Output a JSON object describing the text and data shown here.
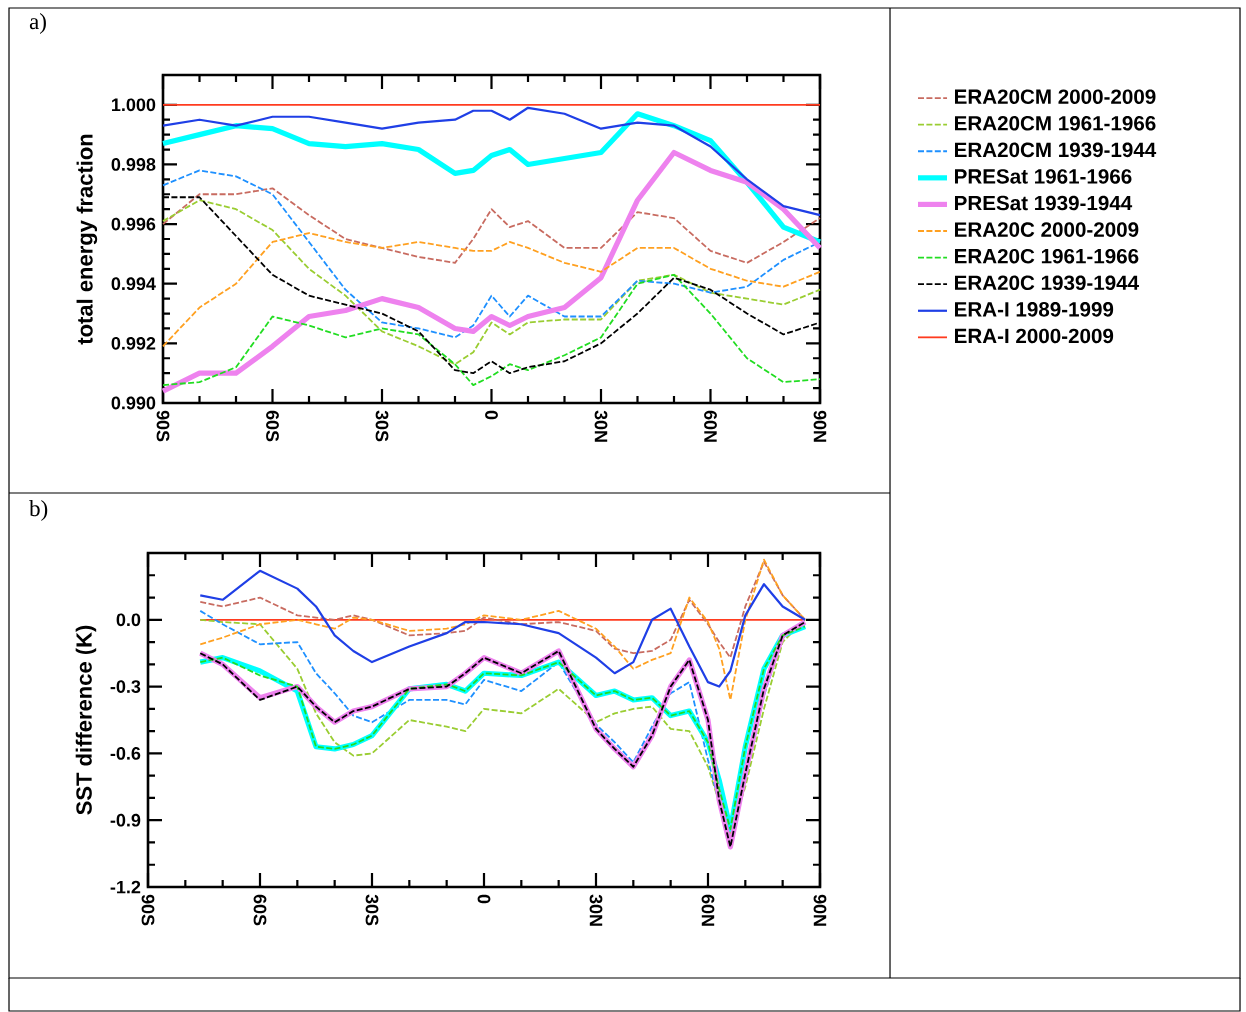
{
  "chart_data": [
    {
      "type": "line",
      "title": "a)",
      "ylabel": "total energy fraction",
      "x": [
        -90,
        -80,
        -70,
        -60,
        -50,
        -40,
        -30,
        -20,
        -10,
        -5,
        0,
        5,
        10,
        20,
        30,
        40,
        50,
        60,
        70,
        80,
        90
      ],
      "xlim": [
        -90,
        90
      ],
      "xticks": [
        {
          "value": -90,
          "label": "90S"
        },
        {
          "value": -60,
          "label": "60S"
        },
        {
          "value": -30,
          "label": "30S"
        },
        {
          "value": 0,
          "label": "0"
        },
        {
          "value": 30,
          "label": "30N"
        },
        {
          "value": 60,
          "label": "60N"
        },
        {
          "value": 90,
          "label": "90N"
        }
      ],
      "ylim": [
        0.99,
        1.001
      ],
      "yticks": [
        {
          "value": 0.99,
          "label": "0.990"
        },
        {
          "value": 0.992,
          "label": "0.992"
        },
        {
          "value": 0.994,
          "label": "0.994"
        },
        {
          "value": 0.996,
          "label": "0.996"
        },
        {
          "value": 0.998,
          "label": "0.998"
        },
        {
          "value": 1.0,
          "label": "1.000"
        }
      ],
      "legend": "right",
      "series": [
        {
          "name": "ERA20CM 2000-2009",
          "color": "#c86b60",
          "line_style": "dashed",
          "values": [
            0.996,
            0.997,
            0.997,
            0.9972,
            0.9963,
            0.9955,
            0.9952,
            0.9949,
            0.9947,
            0.9955,
            0.9965,
            0.9959,
            0.9961,
            0.9952,
            0.9952,
            0.9964,
            0.9962,
            0.9951,
            0.9947,
            0.9954,
            0.9962
          ]
        },
        {
          "name": "ERA20CM 1961-1966",
          "color": "#9acd32",
          "line_style": "dashed",
          "values": [
            0.9961,
            0.9968,
            0.9965,
            0.9958,
            0.9945,
            0.9936,
            0.9924,
            0.9919,
            0.9913,
            0.9917,
            0.9927,
            0.9923,
            0.9927,
            0.9928,
            0.9928,
            0.9941,
            0.9943,
            0.9937,
            0.9935,
            0.9933,
            0.9938
          ]
        },
        {
          "name": "ERA20CM 1939-1944",
          "color": "#1e90ff",
          "line_style": "dashed",
          "values": [
            0.9973,
            0.9978,
            0.9976,
            0.997,
            0.9954,
            0.9938,
            0.9927,
            0.9925,
            0.9922,
            0.9926,
            0.9936,
            0.9929,
            0.9936,
            0.9929,
            0.9929,
            0.9941,
            0.994,
            0.9937,
            0.9939,
            0.9948,
            0.9954
          ]
        },
        {
          "name": "PRESat 1961-1966",
          "color": "#00ffff",
          "line_style": "solid",
          "values": [
            0.9987,
            0.999,
            0.9993,
            0.9992,
            0.9987,
            0.9986,
            0.9987,
            0.9985,
            0.9977,
            0.9978,
            0.9983,
            0.9985,
            0.998,
            0.9982,
            0.9984,
            0.9997,
            0.9993,
            0.9988,
            0.9974,
            0.9959,
            0.9954
          ]
        },
        {
          "name": "PRESat 1939-1944",
          "color": "#ee82ee",
          "line_style": "solid",
          "values": [
            0.9904,
            0.991,
            0.991,
            0.9919,
            0.9929,
            0.9931,
            0.9935,
            0.9932,
            0.9925,
            0.9924,
            0.9929,
            0.9926,
            0.9929,
            0.9932,
            0.9942,
            0.9968,
            0.9984,
            0.9978,
            0.9974,
            0.9965,
            0.9952
          ]
        },
        {
          "name": "ERA20C 2000-2009",
          "color": "#ffa020",
          "line_style": "dashed",
          "values": [
            0.9919,
            0.9932,
            0.994,
            0.9954,
            0.9957,
            0.9954,
            0.9952,
            0.9954,
            0.9952,
            0.9951,
            0.9951,
            0.9954,
            0.9952,
            0.9947,
            0.9944,
            0.9952,
            0.9952,
            0.9945,
            0.9941,
            0.9939,
            0.9944
          ]
        },
        {
          "name": "ERA20C 1961-1966",
          "color": "#22dd22",
          "line_style": "dashed",
          "values": [
            0.9906,
            0.9907,
            0.9912,
            0.9929,
            0.9926,
            0.9922,
            0.9925,
            0.9923,
            0.9913,
            0.9906,
            0.9909,
            0.9913,
            0.9911,
            0.9916,
            0.9922,
            0.994,
            0.9943,
            0.993,
            0.9915,
            0.9907,
            0.9908
          ]
        },
        {
          "name": "ERA20C 1939-1944",
          "color": "#000000",
          "line_style": "dashed",
          "values": [
            0.9969,
            0.9969,
            0.9956,
            0.9943,
            0.9936,
            0.9933,
            0.993,
            0.9924,
            0.9911,
            0.991,
            0.9914,
            0.991,
            0.9912,
            0.9914,
            0.992,
            0.993,
            0.9942,
            0.9938,
            0.993,
            0.9923,
            0.9927
          ]
        },
        {
          "name": "ERA-I 1989-1999",
          "color": "#1f3fe6",
          "line_style": "solid",
          "values": [
            0.9993,
            0.9995,
            0.9993,
            0.9996,
            0.9996,
            0.9994,
            0.9992,
            0.9994,
            0.9995,
            0.9998,
            0.9998,
            0.9995,
            0.9999,
            0.9997,
            0.9992,
            0.9994,
            0.9993,
            0.9986,
            0.9975,
            0.9966,
            0.9963
          ]
        },
        {
          "name": "ERA-I 2000-2009",
          "color": "#ff3b1f",
          "line_style": "solid",
          "values": [
            1.0,
            1.0,
            1.0,
            1.0,
            1.0,
            1.0,
            1.0,
            1.0,
            1.0,
            1.0,
            1.0,
            1.0,
            1.0,
            1.0,
            1.0,
            1.0,
            1.0,
            1.0,
            1.0,
            1.0,
            1.0
          ]
        }
      ]
    },
    {
      "type": "line",
      "title": "b)",
      "ylabel": "SST difference (K)",
      "x": [
        -76,
        -70,
        -60,
        -50,
        -45,
        -40,
        -35,
        -30,
        -20,
        -10,
        -5,
        0,
        10,
        20,
        30,
        35,
        40,
        45,
        50,
        55,
        60,
        63,
        66,
        70,
        75,
        80,
        86
      ],
      "xlim": [
        -90,
        90
      ],
      "xticks": [
        {
          "value": -90,
          "label": "90S"
        },
        {
          "value": -60,
          "label": "60S"
        },
        {
          "value": -30,
          "label": "30S"
        },
        {
          "value": 0,
          "label": "0"
        },
        {
          "value": 30,
          "label": "30N"
        },
        {
          "value": 60,
          "label": "60N"
        },
        {
          "value": 90,
          "label": "90N"
        }
      ],
      "ylim": [
        -1.2,
        0.3
      ],
      "yticks": [
        {
          "value": -1.2,
          "label": "-1.2"
        },
        {
          "value": -0.9,
          "label": "-0.9"
        },
        {
          "value": -0.6,
          "label": "-0.6"
        },
        {
          "value": -0.3,
          "label": "-0.3"
        },
        {
          "value": 0.0,
          "label": "0.0"
        },
        {
          "value": 0.3,
          "label": null
        }
      ],
      "series": [
        {
          "color": "#c86b60",
          "line_style": "dashed",
          "values": [
            0.08,
            0.06,
            0.1,
            0.02,
            0.01,
            0.0,
            0.02,
            0.0,
            -0.07,
            -0.06,
            -0.05,
            0.01,
            -0.02,
            -0.01,
            -0.05,
            -0.13,
            -0.15,
            -0.14,
            -0.09,
            0.09,
            -0.02,
            -0.1,
            -0.17,
            0.06,
            0.26,
            0.11,
            0.0
          ]
        },
        {
          "color": "#9acd32",
          "line_style": "dashed",
          "values": [
            0.0,
            -0.01,
            -0.02,
            -0.22,
            -0.42,
            -0.55,
            -0.61,
            -0.6,
            -0.45,
            -0.48,
            -0.5,
            -0.4,
            -0.42,
            -0.31,
            -0.46,
            -0.42,
            -0.4,
            -0.39,
            -0.49,
            -0.5,
            -0.66,
            -0.82,
            -0.96,
            -0.75,
            -0.4,
            -0.1,
            0.0
          ]
        },
        {
          "color": "#1e90ff",
          "line_style": "dashed",
          "values": [
            0.04,
            -0.02,
            -0.11,
            -0.1,
            -0.24,
            -0.33,
            -0.43,
            -0.46,
            -0.36,
            -0.36,
            -0.38,
            -0.27,
            -0.32,
            -0.19,
            -0.47,
            -0.55,
            -0.64,
            -0.48,
            -0.33,
            -0.28,
            -0.63,
            -0.82,
            -0.93,
            -0.72,
            -0.34,
            -0.08,
            -0.02
          ]
        },
        {
          "color": "#00ffff",
          "line_style": "solid",
          "values": [
            -0.19,
            -0.17,
            -0.23,
            -0.32,
            -0.57,
            -0.58,
            -0.56,
            -0.52,
            -0.31,
            -0.29,
            -0.32,
            -0.24,
            -0.25,
            -0.19,
            -0.34,
            -0.32,
            -0.36,
            -0.35,
            -0.43,
            -0.41,
            -0.55,
            -0.72,
            -0.94,
            -0.57,
            -0.22,
            -0.07,
            -0.03
          ]
        },
        {
          "color": "#ee82ee",
          "line_style": "solid",
          "values": [
            -0.15,
            -0.2,
            -0.35,
            -0.3,
            -0.39,
            -0.46,
            -0.41,
            -0.39,
            -0.31,
            -0.3,
            -0.24,
            -0.17,
            -0.24,
            -0.14,
            -0.49,
            -0.58,
            -0.66,
            -0.52,
            -0.3,
            -0.18,
            -0.45,
            -0.81,
            -1.02,
            -0.69,
            -0.31,
            -0.07,
            -0.01
          ]
        },
        {
          "color": "#ffa020",
          "line_style": "dashed",
          "values": [
            -0.11,
            -0.08,
            -0.02,
            0.0,
            -0.02,
            -0.04,
            0.01,
            0.0,
            -0.05,
            -0.04,
            -0.02,
            0.02,
            0.0,
            0.04,
            -0.04,
            -0.12,
            -0.22,
            -0.18,
            -0.15,
            0.1,
            -0.01,
            -0.13,
            -0.36,
            0.0,
            0.27,
            0.11,
            0.0
          ]
        },
        {
          "color": "#22dd22",
          "line_style": "dashed",
          "values": [
            -0.19,
            -0.17,
            -0.25,
            -0.3,
            -0.57,
            -0.58,
            -0.56,
            -0.52,
            -0.31,
            -0.29,
            -0.32,
            -0.24,
            -0.25,
            -0.19,
            -0.34,
            -0.32,
            -0.36,
            -0.35,
            -0.43,
            -0.41,
            -0.55,
            -0.76,
            -0.94,
            -0.57,
            -0.22,
            -0.07,
            -0.03
          ]
        },
        {
          "color": "#000000",
          "line_style": "dashed",
          "values": [
            -0.15,
            -0.2,
            -0.36,
            -0.3,
            -0.39,
            -0.46,
            -0.41,
            -0.39,
            -0.31,
            -0.3,
            -0.24,
            -0.17,
            -0.24,
            -0.14,
            -0.49,
            -0.58,
            -0.66,
            -0.52,
            -0.3,
            -0.18,
            -0.45,
            -0.81,
            -1.02,
            -0.69,
            -0.31,
            -0.07,
            -0.01
          ]
        },
        {
          "color": "#1f3fe6",
          "line_style": "solid",
          "values": [
            0.11,
            0.09,
            0.22,
            0.14,
            0.06,
            -0.07,
            -0.14,
            -0.19,
            -0.12,
            -0.06,
            -0.01,
            -0.01,
            -0.02,
            -0.06,
            -0.17,
            -0.24,
            -0.19,
            0.0,
            0.05,
            -0.12,
            -0.28,
            -0.3,
            -0.23,
            0.02,
            0.16,
            0.06,
            0.0
          ]
        },
        {
          "color": "#ff3b1f",
          "line_style": "solid",
          "values": [
            0.0,
            0.0,
            0.0,
            0.0,
            0.0,
            0.0,
            0.0,
            0.0,
            0.0,
            0.0,
            0.0,
            0.0,
            0.0,
            0.0,
            0.0,
            0.0,
            0.0,
            0.0,
            0.0,
            0.0,
            0.0,
            0.0,
            0.0,
            0.0,
            0.0,
            0.0,
            0.0
          ]
        }
      ]
    }
  ]
}
